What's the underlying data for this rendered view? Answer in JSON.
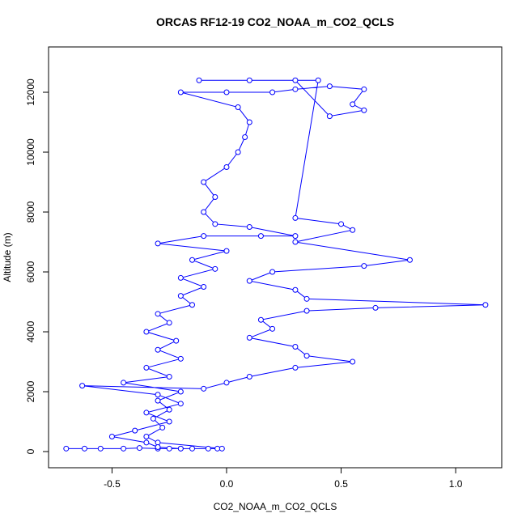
{
  "chart_data": {
    "type": "line",
    "markers": true,
    "color": "#0000ff",
    "title": "ORCAS RF12-19 CO2_NOAA_m_CO2_QCLS",
    "x_label": "CO2_NOAA_m_CO2_QCLS",
    "y_label": "Altitude (m)",
    "xlim": [
      -0.777,
      1.201
    ],
    "ylim": [
      -540,
      13514
    ],
    "xticks": [
      -0.5,
      {
        "value": 0,
        "label": "0.0"
      },
      0.5,
      {
        "value": 1,
        "label": "1.0"
      }
    ],
    "yticks": [
      0,
      2000,
      4000,
      6000,
      8000,
      10000,
      12000
    ],
    "x": [
      -0.7,
      -0.62,
      -0.55,
      -0.45,
      -0.38,
      -0.3,
      -0.25,
      -0.2,
      -0.15,
      -0.08,
      -0.04,
      -0.02,
      -0.3,
      -0.35,
      -0.28,
      -0.32,
      -0.25,
      -0.3,
      -0.2,
      -0.45,
      -0.25,
      -0.35,
      -0.2,
      -0.3,
      -0.22,
      -0.35,
      -0.25,
      -0.3,
      -0.15,
      -0.2,
      -0.1,
      -0.2,
      -0.05,
      -0.15,
      0.0,
      -0.3,
      -0.1,
      0.15,
      0.3,
      0.1,
      -0.05,
      -0.1,
      -0.05,
      -0.1,
      0.0,
      0.05,
      0.08,
      0.1,
      0.05,
      -0.2,
      0.0,
      0.2,
      0.3,
      0.45,
      0.6,
      0.55,
      0.6,
      0.45,
      0.3,
      0.1,
      -0.12,
      0.4,
      0.3,
      0.5,
      0.55,
      0.3,
      0.8,
      0.6,
      0.2,
      0.1,
      0.3,
      0.35,
      1.13,
      0.65,
      0.35,
      0.15,
      0.2,
      0.1,
      0.3,
      0.35,
      0.55,
      0.3,
      0.1,
      0.0,
      -0.1,
      -0.63,
      -0.3,
      -0.2,
      -0.35,
      -0.25,
      -0.4,
      -0.5,
      -0.35,
      -0.3,
      -0.2
    ],
    "values": [
      100,
      100,
      100,
      100,
      120,
      100,
      100,
      100,
      100,
      100,
      100,
      100,
      300,
      500,
      800,
      1100,
      1400,
      1700,
      2000,
      2300,
      2500,
      2800,
      3100,
      3400,
      3700,
      4000,
      4300,
      4600,
      4900,
      5200,
      5500,
      5800,
      6100,
      6400,
      6700,
      6950,
      7200,
      7200,
      7200,
      7500,
      7600,
      8000,
      8500,
      9000,
      9500,
      10000,
      10500,
      11000,
      11500,
      12000,
      12000,
      12000,
      12100,
      12200,
      12100,
      11600,
      11400,
      11200,
      12400,
      12400,
      12400,
      12400,
      7800,
      7600,
      7400,
      7000,
      6400,
      6200,
      6000,
      5700,
      5400,
      5100,
      4900,
      4800,
      4700,
      4400,
      4100,
      3800,
      3500,
      3200,
      3000,
      2800,
      2500,
      2300,
      2100,
      2200,
      1900,
      1600,
      1300,
      1000,
      700,
      500,
      300,
      150,
      100
    ]
  }
}
